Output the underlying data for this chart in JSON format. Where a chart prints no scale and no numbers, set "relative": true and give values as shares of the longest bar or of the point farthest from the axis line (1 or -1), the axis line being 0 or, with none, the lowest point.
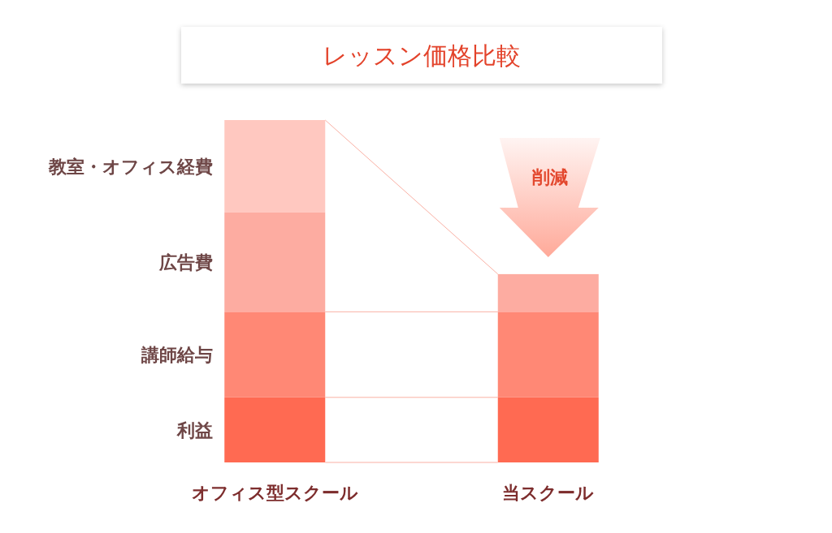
{
  "chart_data": {
    "type": "bar",
    "title": "レッスン価格比較",
    "categories": [
      "オフィス型スクール",
      "当スクール"
    ],
    "stacked": true,
    "relative": true,
    "series": [
      {
        "name": "利益",
        "color": "#ff6a52",
        "values": [
          0.19,
          0.19
        ]
      },
      {
        "name": "講師給与",
        "color": "#ff8875",
        "values": [
          0.25,
          0.25
        ]
      },
      {
        "name": "広告費",
        "color": "#fdaca1",
        "values": [
          0.29,
          0.11
        ]
      },
      {
        "name": "教室・オフィス経費",
        "color": "#ffc8c0",
        "values": [
          0.27,
          null
        ]
      }
    ],
    "annotations": [
      "削減"
    ]
  }
}
